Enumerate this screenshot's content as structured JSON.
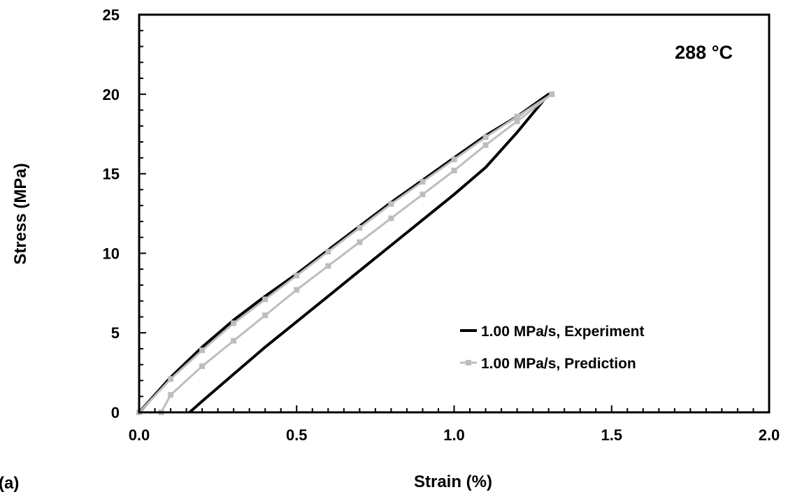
{
  "chart_data": {
    "type": "line",
    "panel_label": "(a)",
    "annotation": "288 °C",
    "xlabel": "Strain (%)",
    "ylabel": "Stress (MPa)",
    "xlim": [
      0,
      2
    ],
    "ylim": [
      0,
      25
    ],
    "x_ticks": [
      0,
      0.5,
      1.0,
      1.5,
      2.0
    ],
    "x_tick_labels": [
      "0.0",
      "0.5",
      "1.0",
      "1.5",
      "2.0"
    ],
    "y_ticks": [
      0,
      5,
      10,
      15,
      20,
      25
    ],
    "y_tick_labels": [
      "0",
      "5",
      "10",
      "15",
      "20",
      "25"
    ],
    "grid": false,
    "legend_position": "bottom-right",
    "series": [
      {
        "name": "1.00 MPa/s, Experiment",
        "color": "#000000",
        "marker": "none",
        "x": [
          0.0,
          0.1,
          0.2,
          0.3,
          0.4,
          0.5,
          0.6,
          0.7,
          0.8,
          0.9,
          1.0,
          1.1,
          1.2,
          1.3,
          1.25,
          1.2,
          1.1,
          1.0,
          0.9,
          0.8,
          0.7,
          0.6,
          0.5,
          0.4,
          0.3,
          0.2,
          0.16
        ],
        "y": [
          0.0,
          2.2,
          4.1,
          5.8,
          7.3,
          8.7,
          10.2,
          11.7,
          13.2,
          14.6,
          16.0,
          17.4,
          18.6,
          20.0,
          18.8,
          17.6,
          15.4,
          13.7,
          12.1,
          10.5,
          8.9,
          7.3,
          5.7,
          4.1,
          2.4,
          0.7,
          0.0
        ]
      },
      {
        "name": "1.00 MPa/s, Prediction",
        "color": "#bdbdbd",
        "marker": "square",
        "x": [
          0.0,
          0.1,
          0.2,
          0.3,
          0.4,
          0.5,
          0.6,
          0.7,
          0.8,
          0.9,
          1.0,
          1.1,
          1.2,
          1.31,
          1.2,
          1.1,
          1.0,
          0.9,
          0.8,
          0.7,
          0.6,
          0.5,
          0.4,
          0.3,
          0.2,
          0.1,
          0.07
        ],
        "y": [
          0.0,
          2.1,
          3.9,
          5.6,
          7.1,
          8.6,
          10.1,
          11.6,
          13.1,
          14.5,
          15.9,
          17.3,
          18.6,
          20.0,
          18.3,
          16.8,
          15.2,
          13.7,
          12.2,
          10.7,
          9.2,
          7.7,
          6.1,
          4.5,
          2.9,
          1.1,
          0.0
        ]
      }
    ]
  }
}
